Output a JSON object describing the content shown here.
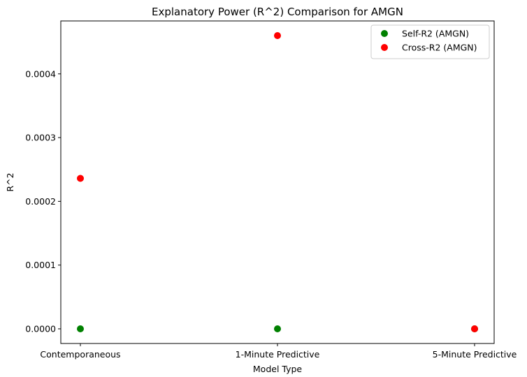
{
  "chart_data": {
    "type": "scatter",
    "title": "Explanatory Power (R^2) Comparison for AMGN",
    "xlabel": "Model Type",
    "ylabel": "R^2",
    "categories": [
      "Contemporaneous",
      "1-Minute Predictive",
      "5-Minute Predictive"
    ],
    "ylim": [
      -2.3e-05,
      0.000483
    ],
    "yticks": [
      "0.0000",
      "0.0001",
      "0.0002",
      "0.0003",
      "0.0004"
    ],
    "ytick_values": [
      0,
      0.0001,
      0.0002,
      0.0003,
      0.0004
    ],
    "grid": false,
    "legend_position": "top-right",
    "series": [
      {
        "name": "Self-R2 (AMGN)",
        "color": "#008000",
        "values": [
          0.0,
          0.0,
          0.0
        ]
      },
      {
        "name": "Cross-R2 (AMGN)",
        "color": "#ff0000",
        "values": [
          0.000236,
          0.00046,
          0.0
        ]
      }
    ]
  }
}
